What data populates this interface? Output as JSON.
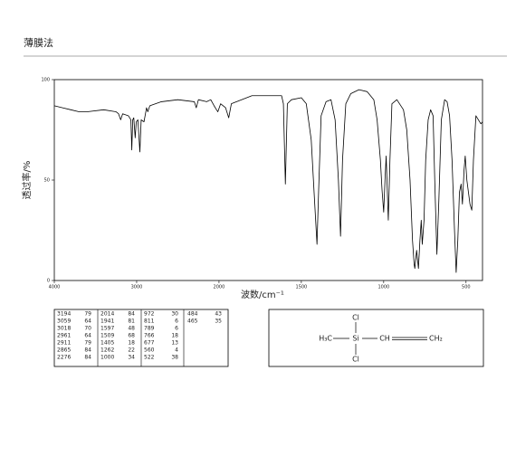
{
  "header": {
    "title": "薄膜法"
  },
  "chart_data": {
    "type": "line",
    "x_label": "波数/cm⁻¹",
    "y_label": "透过率/%",
    "xlim": [
      4000,
      400
    ],
    "xticks": [
      4000,
      3000,
      2000,
      1500,
      1000,
      500
    ],
    "x_scale_change_at": 2000,
    "ylim": [
      0,
      100
    ],
    "yticks": [
      0,
      50,
      100
    ],
    "x": [
      4000,
      3900,
      3800,
      3700,
      3600,
      3400,
      3250,
      3220,
      3194,
      3170,
      3100,
      3070,
      3059,
      3048,
      3035,
      3018,
      3005,
      2985,
      2961,
      2945,
      2911,
      2880,
      2865,
      2840,
      2700,
      2500,
      2300,
      2276,
      2250,
      2150,
      2100,
      2060,
      2030,
      2014,
      1990,
      1960,
      1941,
      1925,
      1800,
      1700,
      1620,
      1609,
      1597,
      1585,
      1560,
      1500,
      1470,
      1440,
      1420,
      1405,
      1395,
      1380,
      1350,
      1320,
      1295,
      1275,
      1262,
      1250,
      1230,
      1200,
      1150,
      1100,
      1060,
      1040,
      1020,
      1010,
      1000,
      992,
      985,
      972,
      962,
      950,
      920,
      880,
      860,
      840,
      825,
      815,
      811,
      800,
      789,
      780,
      772,
      766,
      755,
      745,
      730,
      715,
      700,
      690,
      677,
      665,
      650,
      630,
      615,
      600,
      585,
      570,
      560,
      550,
      540,
      530,
      522,
      512,
      505,
      495,
      484,
      476,
      465,
      455,
      440,
      425,
      410,
      400
    ],
    "series": [
      {
        "color": "#000000",
        "values": [
          87,
          86,
          85,
          84,
          84,
          85,
          84,
          83,
          80,
          83,
          82,
          80,
          65,
          80,
          81,
          71,
          79,
          80,
          64,
          80,
          79,
          86,
          84,
          87,
          89,
          90,
          89,
          86,
          90,
          89,
          90,
          87,
          85,
          84,
          88,
          86,
          81,
          88,
          92,
          92,
          92,
          88,
          48,
          88,
          90,
          91,
          88,
          70,
          40,
          18,
          45,
          82,
          89,
          90,
          80,
          50,
          22,
          60,
          88,
          93,
          95,
          94,
          90,
          80,
          60,
          45,
          34,
          50,
          62,
          30,
          60,
          88,
          90,
          85,
          75,
          50,
          20,
          8,
          6,
          15,
          6,
          20,
          30,
          18,
          30,
          60,
          80,
          85,
          82,
          50,
          13,
          40,
          80,
          90,
          89,
          82,
          60,
          25,
          4,
          20,
          44,
          48,
          38,
          55,
          62,
          50,
          43,
          38,
          35,
          60,
          82,
          80,
          78,
          79
        ]
      }
    ]
  },
  "peak_table": {
    "columns": [
      [
        [
          3194,
          79
        ],
        [
          3059,
          64
        ],
        [
          3018,
          70
        ],
        [
          2961,
          64
        ],
        [
          2911,
          79
        ],
        [
          2865,
          84
        ],
        [
          2276,
          84
        ]
      ],
      [
        [
          2014,
          84
        ],
        [
          1941,
          81
        ],
        [
          1597,
          48
        ],
        [
          1509,
          68
        ],
        [
          1405,
          18
        ],
        [
          1262,
          22
        ],
        [
          1000,
          34
        ]
      ],
      [
        [
          972,
          30
        ],
        [
          811,
          6
        ],
        [
          789,
          6
        ],
        [
          766,
          18
        ],
        [
          677,
          13
        ],
        [
          560,
          4
        ],
        [
          522,
          38
        ]
      ],
      [
        [
          484,
          43
        ],
        [
          465,
          35
        ]
      ]
    ]
  },
  "structure": {
    "atoms": [
      "Cl",
      "Si",
      "Cl",
      "H₃C",
      "CH",
      "CH₂"
    ]
  }
}
